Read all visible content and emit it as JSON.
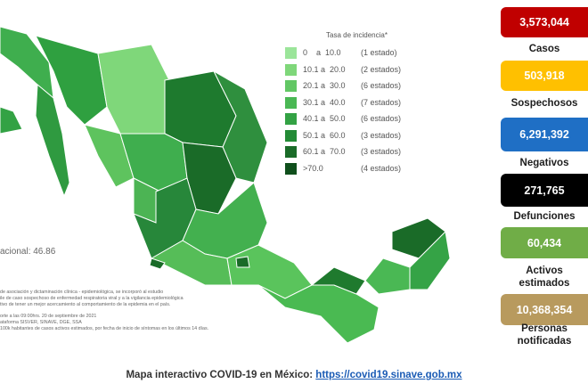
{
  "legend": {
    "title": "Tasa de incidencia*",
    "rows": [
      {
        "range": "0    a  10.0",
        "count": "(1 estado)"
      },
      {
        "range": "10.1 a  20.0",
        "count": "(2 estados)"
      },
      {
        "range": "20.1 a  30.0",
        "count": "(6 estados)"
      },
      {
        "range": "30.1 a  40.0",
        "count": "(7 estados)"
      },
      {
        "range": "40.1 a  50.0",
        "count": "(6 estados)"
      },
      {
        "range": "50.1 a  60.0",
        "count": "(3 estados)"
      },
      {
        "range": "60.1 a  70.0",
        "count": "(3 estados)"
      },
      {
        "range": ">70.0",
        "count": "(4 estados)"
      }
    ]
  },
  "national_rate": "acional: 46.86",
  "footnotes": [
    "de asociación y dictaminación clínica - epidemiológica, se incorporó al estudio",
    "ile de caso sospechoso de enfermedad respiratoria viral y a la vigilancia epidemiológica",
    "tivo de tener un mejor acercamiento al comportamiento de la epidemia en el país.",
    "",
    "orte a las 09:00hrs. 20 de septiembre de 2021",
    "ataforma SISVER, SINAVE, DGE, SSA",
    "100k habitantes de casos activos estimados, por fecha de inicio de síntomas en los últimos 14 días."
  ],
  "stats": [
    {
      "value": "3,573,044",
      "label": "Casos"
    },
    {
      "value": "503,918",
      "label": "Sospechosos"
    },
    {
      "value": "6,291,392",
      "label": "Negativos"
    },
    {
      "value": "271,765",
      "label": "Defunciones"
    },
    {
      "value": "60,434",
      "label": "Activos estimados"
    },
    {
      "value": "10,368,354",
      "label": "Personas notificadas"
    }
  ],
  "footer": {
    "text": "Mapa interactivo COVID-19 en México:",
    "link": "https://covid19.sinave.gob.mx"
  }
}
